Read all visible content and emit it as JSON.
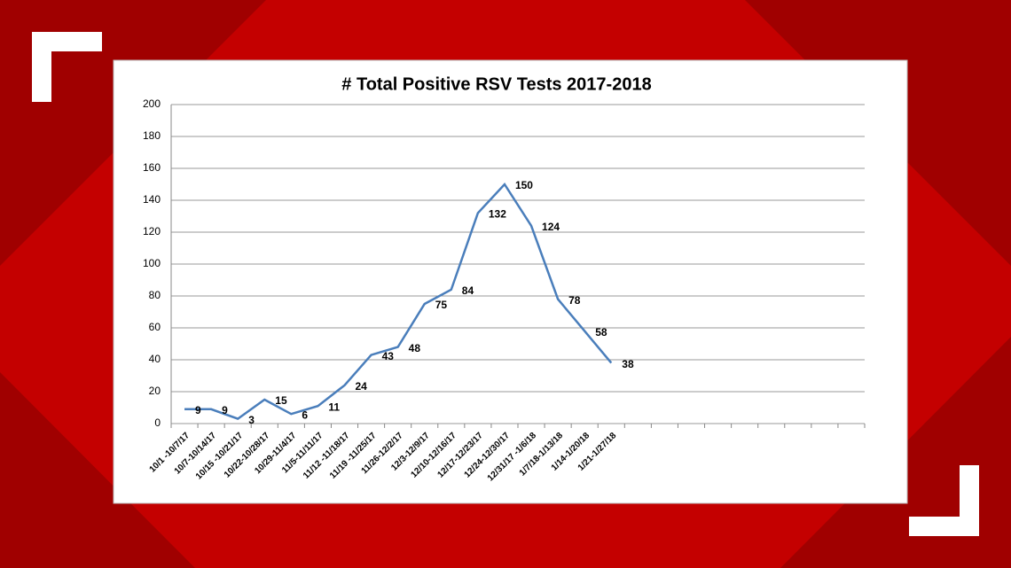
{
  "chart_data": {
    "type": "line",
    "title": "# Total Positive RSV Tests 2017-2018",
    "categories": [
      "10/1 -10/7/17",
      "10/7-10/14/17",
      "10/15 -10/21/17",
      "10/22-10/28/17",
      "10/29-11/4/17",
      "11/5-11/11/17",
      "11/12 -11/18/17",
      "11/19 -11/25/17",
      "11/26-12/2/17",
      "12/3-12/9/17",
      "12/10-12/16/17",
      "12/17-12/23/17",
      "12/24-12/30/17",
      "12/31/17 -1/6/18",
      "1/7/18-1/13/18",
      "1/14-1/20/18",
      "1/21-1/27/18",
      null,
      null,
      null,
      null,
      null,
      null,
      null,
      null,
      null
    ],
    "series": [
      {
        "name": null,
        "color": "#4a7ebb",
        "values": [
          9,
          9,
          3,
          15,
          6,
          11,
          24,
          43,
          48,
          75,
          84,
          132,
          150,
          124,
          78,
          58,
          38,
          null,
          null,
          null,
          null,
          null,
          null,
          null,
          null,
          null
        ]
      }
    ],
    "ylim": [
      0,
      200
    ],
    "yticks": [
      0,
      20,
      40,
      60,
      80,
      100,
      120,
      140,
      160,
      180,
      200
    ],
    "grid": true
  }
}
